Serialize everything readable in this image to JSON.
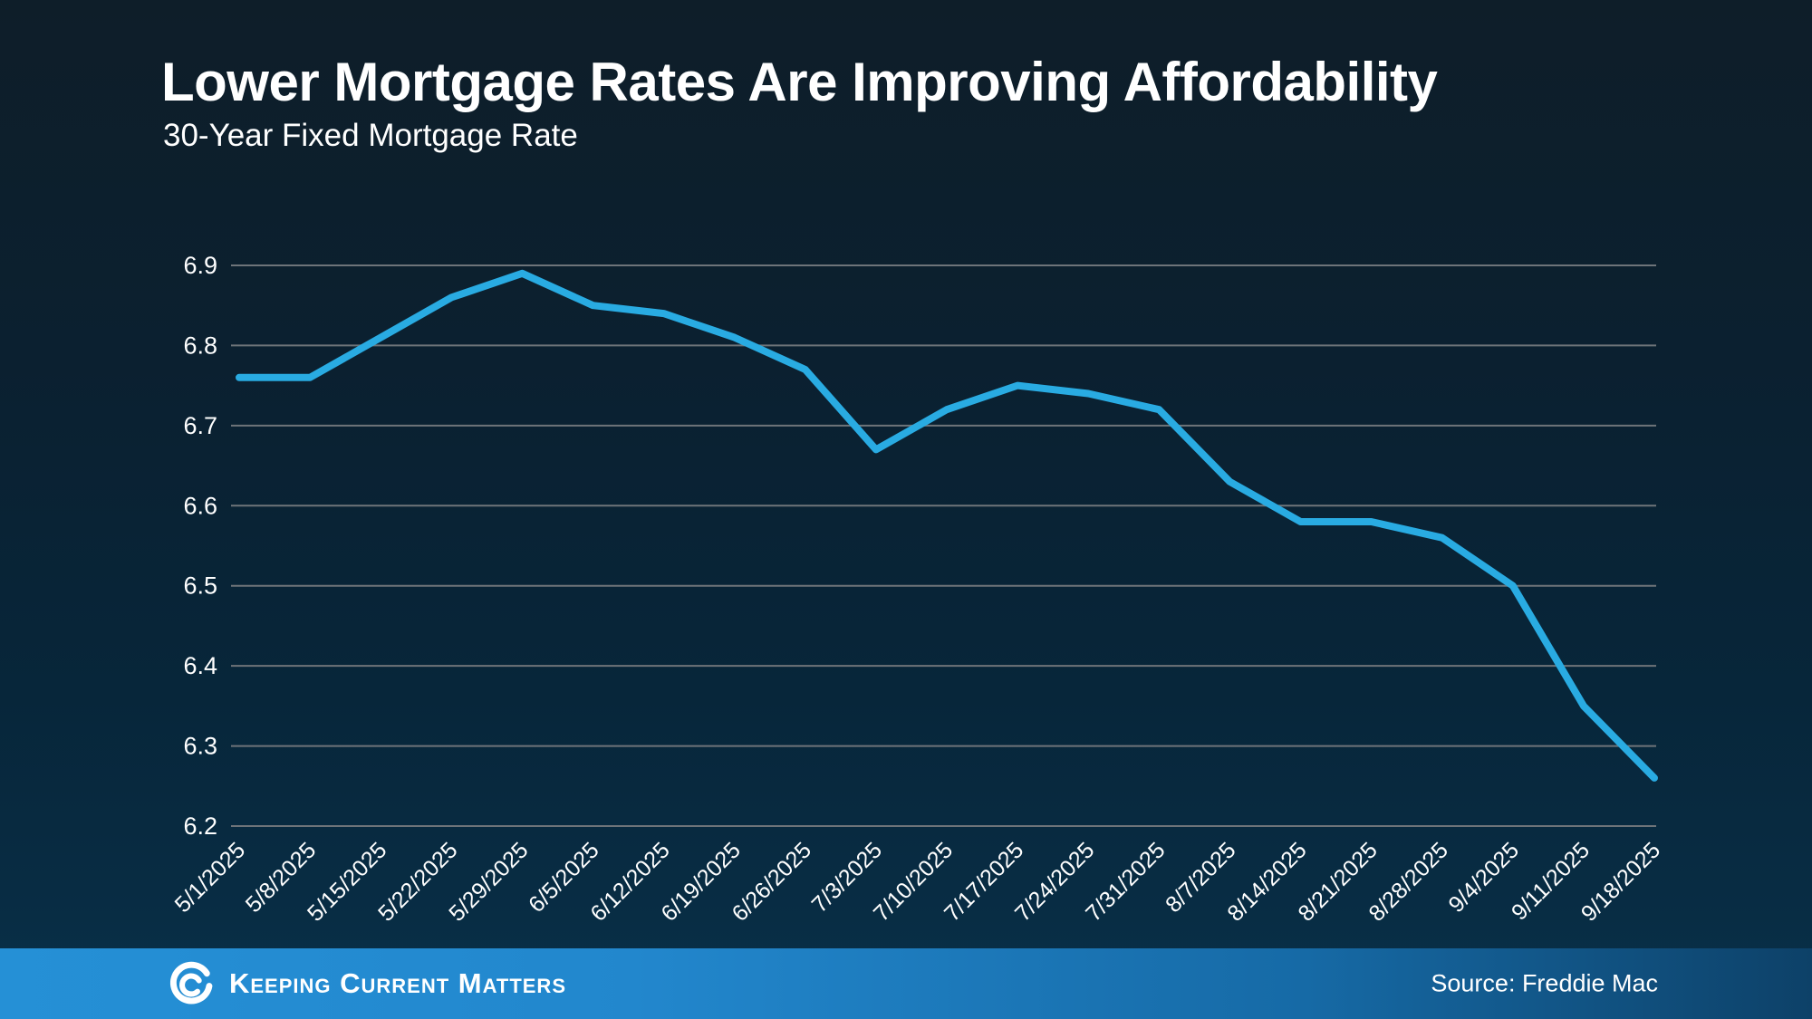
{
  "header": {
    "title": "Lower Mortgage Rates Are Improving Affordability",
    "subtitle": "30-Year Fixed Mortgage Rate"
  },
  "footer": {
    "brand": "Keeping Current Matters",
    "logo_icon": "kcm-swirl-icon",
    "source": "Source: Freddie Mac"
  },
  "colors": {
    "background_top": "#0e1e29",
    "background_bottom": "#093049",
    "line": "#29ABE2",
    "grid": "#6e7479",
    "text": "#ffffff",
    "footer_left": "#2590d6",
    "footer_right": "#0d4168"
  },
  "chart_data": {
    "type": "line",
    "title": "Lower Mortgage Rates Are Improving Affordability",
    "subtitle": "30-Year Fixed Mortgage Rate",
    "xlabel": "",
    "ylabel": "",
    "ylim": [
      6.2,
      6.9
    ],
    "ytick_step": 0.1,
    "ytick_decimals": 1,
    "grid": "horizontal",
    "legend": "none",
    "categories": [
      "5/1/2025",
      "5/8/2025",
      "5/15/2025",
      "5/22/2025",
      "5/29/2025",
      "6/5/2025",
      "6/12/2025",
      "6/19/2025",
      "6/26/2025",
      "7/3/2025",
      "7/10/2025",
      "7/17/2025",
      "7/24/2025",
      "7/31/2025",
      "8/7/2025",
      "8/14/2025",
      "8/21/2025",
      "8/28/2025",
      "9/4/2025",
      "9/11/2025",
      "9/18/2025"
    ],
    "series": [
      {
        "name": "30-Year Fixed Mortgage Rate",
        "values": [
          6.76,
          6.76,
          6.81,
          6.86,
          6.89,
          6.85,
          6.84,
          6.81,
          6.77,
          6.67,
          6.72,
          6.75,
          6.74,
          6.72,
          6.63,
          6.58,
          6.58,
          6.56,
          6.5,
          6.35,
          6.26
        ]
      }
    ],
    "source": "Source: Freddie Mac"
  }
}
